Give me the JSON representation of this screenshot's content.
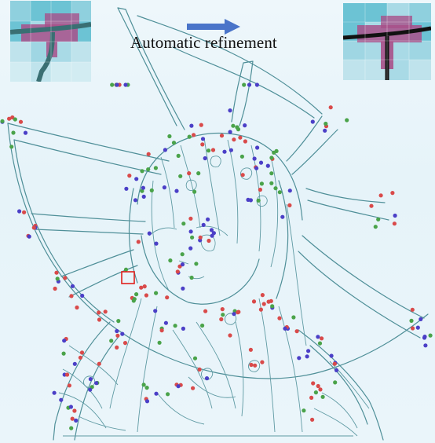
{
  "caption": {
    "text": "Automatic refinement"
  },
  "colors": {
    "background": "#e8f4f9",
    "stroke": "#4f8f98",
    "arrow": "#4a74c9",
    "point_red": "#d94a4a",
    "point_green": "#4aa34a",
    "point_blue": "#4b3fc7",
    "highlight_box": "#e0201c",
    "inset_cell_light": "#a9dae6",
    "inset_cell_mid": "#6cc3d4",
    "inset_cell_magenta": "#a8508a"
  },
  "icons": {
    "arrow": "right-arrow-icon",
    "highlight": "highlight-box"
  },
  "insets": {
    "before": "pixel-grid-before",
    "after": "pixel-grid-after"
  }
}
